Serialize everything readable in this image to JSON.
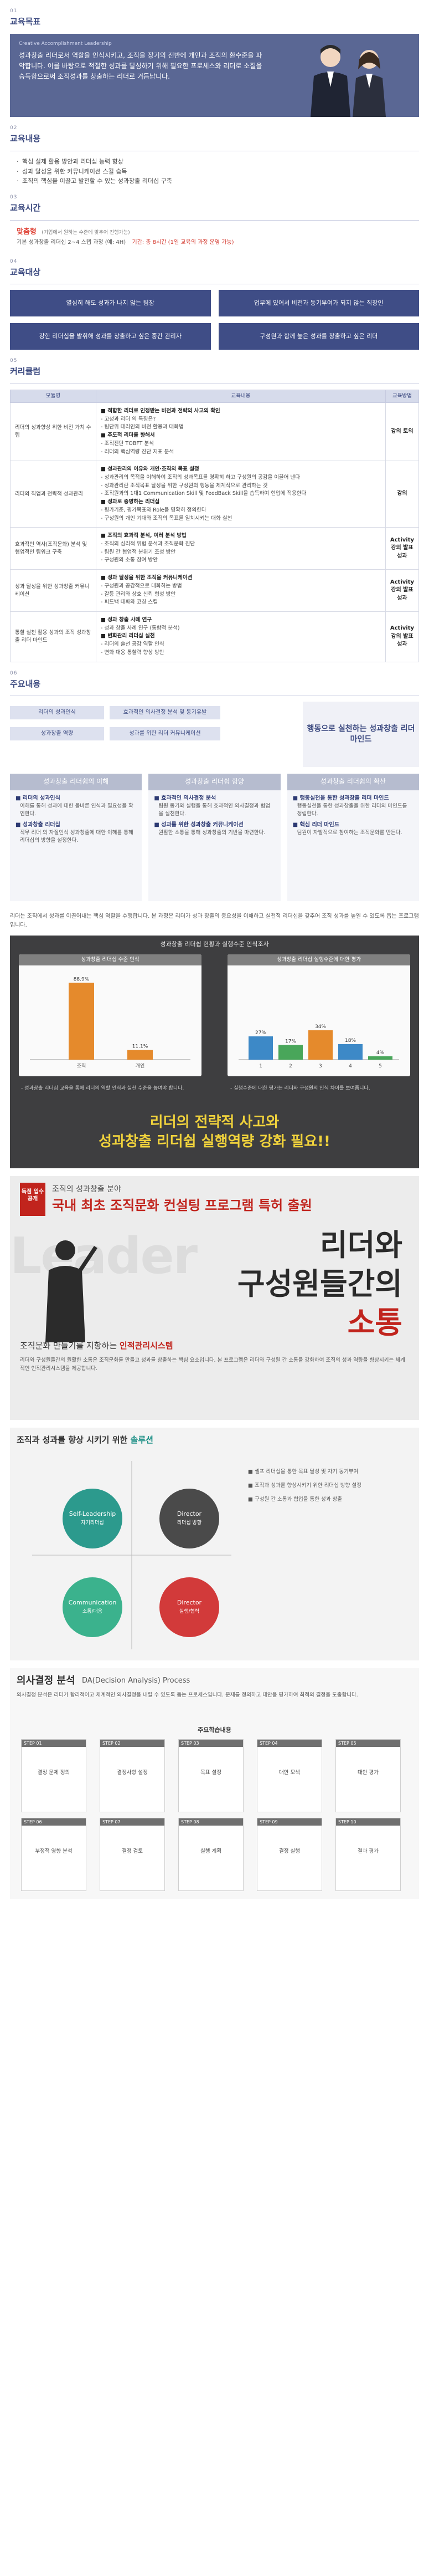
{
  "sections": {
    "goal": {
      "num": "01",
      "title": "교육목표"
    },
    "content": {
      "num": "02",
      "title": "교육내용"
    },
    "time": {
      "num": "03",
      "title": "교육시간"
    },
    "target": {
      "num": "04",
      "title": "교육대상"
    },
    "curriculum": {
      "num": "05",
      "title": "커리큘럼"
    },
    "main": {
      "num": "06",
      "title": "주요내용"
    }
  },
  "goal": {
    "banner_sub": "Creative Accomplishment Leadership",
    "text": "성과창출 리더로서 역할을 인식시키고, 조직을 장기의 전반에 개인과 조직의 환수준을 파악합니다. 이를 바탕으로 적절한 성과를 달성하기 위해 필요한 프로세스와 리더로 소질을 습득함으로써 조직성과를 창출하는 리더로 거듭납니다."
  },
  "content_items": [
    "핵심 실제 활용 방안과 리더십 능력 향상",
    "성과 달성을 위한 커뮤니케이션 스킬 습득",
    "조직의 핵심을 이끌고 발전할 수 있는 성과창출 리더십 구축"
  ],
  "time": {
    "big": "맞춤형",
    "note": "(기업에서 원하는 수준에 맞추어 진행가능)",
    "detail": "기본 성과창출 리더십 2~4 스텝 과정 (예: 4H)",
    "red": "기간: 총 8시간 (1일 교육의 과정 운영 가능)"
  },
  "target_boxes": [
    "열심히 해도 성과가 나지 않는 팀장",
    "업무에 있어서 비전과 동기부여가 되지 않는 직장인",
    "강한 리더십을 발휘해 성과를 창출하고 싶은 중간 관리자",
    "구성원과 함께 높은 성과를 창출하고 싶은 리더"
  ],
  "curriculum": {
    "headers": [
      "모듈명",
      "교육내용",
      "교육방법"
    ],
    "rows": [
      {
        "module": "리더의 성과향상 위한 비전 가치 수립",
        "lines": [
          {
            "t": "■ 적합한 리더로 인정받는 비전과 전략의 사고의 확인",
            "h": true
          },
          {
            "t": "- 고성과 리더 의 특징은?",
            "h": false
          },
          {
            "t": "- 팀단위 대리인의 비전 활용과 대화법",
            "h": false
          },
          {
            "t": "■ 주도적 리더를 향해서",
            "h": true
          },
          {
            "t": "- 조직진단 TOBFT 분석",
            "h": false
          },
          {
            "t": "- 리더의 핵심역량 진단 지표 분석",
            "h": false
          }
        ],
        "method": "강의 토의"
      },
      {
        "module": "리더의 직업과 전략적 성과관리",
        "lines": [
          {
            "t": "■ 성과관리의 이유와 개인·조직의 목표 설정",
            "h": true
          },
          {
            "t": "- 성과관리의 목적을 이해하여 조직의 성과목표를 명확히 하고 구성원의 공감을 이끌어 낸다",
            "h": false
          },
          {
            "t": "- 성과관리란 조직목표 달성을 위한 구성원의 행동을 체계적으로 관리하는 것",
            "h": false
          },
          {
            "t": "- 조직원과의 1대1 Communication Skill 및 FeedBack Skill을 습득하여 현업에 적용한다",
            "h": false
          },
          {
            "t": "■ 성과로 증명하는 리더십",
            "h": true
          },
          {
            "t": "- 평가기준, 평가목표와 Role을 명확히 정의한다",
            "h": false
          },
          {
            "t": "- 구성원의 개인 기대와 조직의 목표를 일치시키는 대화 실천",
            "h": false
          }
        ],
        "method": "강의"
      },
      {
        "module": "효과적인 역사(조직문화) 분석 및 협업적인 팀워크 구축",
        "lines": [
          {
            "t": "■ 조직의 효과적 분석, 여러 분석 방법",
            "h": true
          },
          {
            "t": "- 조직의 심리적 위험 분석과 조직문화 진단",
            "h": false
          },
          {
            "t": "- 팀원 간 협업적 분위기 조성 방안",
            "h": false
          },
          {
            "t": "- 구성원의 소통 참여 방안",
            "h": false
          }
        ],
        "method": "Activity 강의 발표 성과"
      },
      {
        "module": "성과 달성을 위한 성과창출 커뮤니케이션",
        "lines": [
          {
            "t": "■ 성과 달성을 위한 조직을 커뮤니케이션",
            "h": true
          },
          {
            "t": "- 구성원과 공감적으로 대화하는 방법",
            "h": false
          },
          {
            "t": "- 갈등 관리와 상호 신뢰 형성 방안",
            "h": false
          },
          {
            "t": "- 피드백 대화와 코칭 스킬",
            "h": false
          }
        ],
        "method": "Activity 강의 발표 성과"
      },
      {
        "module": "통찰 실천 활용 성과의 조직 성과창출 리더 마인드",
        "lines": [
          {
            "t": "■ 성과 창출 사례 연구",
            "h": true
          },
          {
            "t": "- 성과 창출 사례 연구 (통합적 분석)",
            "h": false
          },
          {
            "t": "■ 변화관리 리더십 실천",
            "h": true
          },
          {
            "t": "- 리더의 솔선 공감 역할 인식",
            "h": false
          },
          {
            "t": "- 변화 대응 통찰력 향상 방안",
            "h": false
          }
        ],
        "method": "Activity 강의 발표 성과"
      }
    ]
  },
  "main": {
    "bars": [
      "리더의 성과인식",
      "효과적인 의사결정 분석 및 동기유발",
      "성과창출 역량",
      "성과를 위한 리더 커뮤니케이션"
    ],
    "final": "행동으로 실천하는 성과창출 리더 마인드",
    "columns": [
      {
        "head": "성과창출 리더쉽의 이해",
        "items": [
          {
            "t": "■ 리더의 성과인식",
            "d": "이해를 통해 성과에 대한 올바른 인식과 필요성을 확인한다."
          },
          {
            "t": "■ 성과창출 리더십",
            "d": "직무 리더 의 자질인식 성과창출에 대한 이해를 통해 리더십의 방향을 설정한다."
          }
        ]
      },
      {
        "head": "성과창출 리더쉽 함양",
        "items": [
          {
            "t": "■ 효과적인 의사결정 분석",
            "d": "팀원 동기와 실행을 통해 효과적인 의사결정과 협업을 실천한다."
          },
          {
            "t": "■ 성과를 위한 성과창출 커뮤니케이션",
            "d": "원활한 소통을 통해 성과창출의 기반을 마련한다."
          }
        ]
      },
      {
        "head": "성과창출 리더쉽의 확산",
        "items": [
          {
            "t": "■ 행동실천을 통한 성과창출 리더 마인드",
            "d": "행동실천을 통한 성과창출을 위한 리더의 마인드를 정립한다."
          },
          {
            "t": "■ 핵심 리더 마인드",
            "d": "팀원이 자발적으로 참여하는 조직문화를 만든다."
          }
        ]
      }
    ]
  },
  "intro_para": "리더는 조직에서 성과를 이끌어내는 핵심 역할을 수행합니다. 본 과정은 리더가 성과 창출의 중요성을 이해하고 실천적 리더십을 갖추어 조직 성과를 높일 수 있도록 돕는 프로그램입니다.",
  "dark_panel": {
    "title": "성과창출 리더쉽 현황과 실행수준 인식조사",
    "chart1": {
      "title": "성과창출 리더십 수준 인식"
    },
    "chart2": {
      "title": "성과창출 리더십 실행수준에 대한 평가"
    },
    "note_left": "- 성과창출 리더십 교육을 통해 리더의 역할 인식과 실천 수준을 높여야 합니다.",
    "note_right": "- 실행수준에 대한 평가는 리더와 구성원의 인식 차이를 보여줍니다.",
    "slogan1": "리더의 전략적 사고와",
    "slogan2": "성과창출 리더쉽 실행역량 강화 필요!!"
  },
  "chart_data": [
    {
      "type": "bar",
      "title": "성과창출 리더십 수준 인식",
      "categories": [
        "조직",
        "개인"
      ],
      "values": [
        88.9,
        11.1
      ],
      "value_labels": [
        "88.9%",
        "11.1%"
      ],
      "ylim": [
        0,
        100
      ]
    },
    {
      "type": "bar",
      "title": "성과창출 리더십 실행수준에 대한 평가",
      "categories": [
        "1",
        "2",
        "3",
        "4",
        "5"
      ],
      "values": [
        27,
        17,
        34,
        18,
        4
      ],
      "value_labels": [
        "27%",
        "17%",
        "34%",
        "18%",
        "4%"
      ],
      "ylim": [
        0,
        100
      ]
    }
  ],
  "book": {
    "badge": "독점 입수 공개",
    "line1": "조직의 성과창출 분야",
    "line2": "국내 최초 조직문화 컨설팅 프로그램 특허 출원",
    "bgword": "Leader",
    "title_a": "리더와",
    "title_b": "구성원들간의",
    "title_c": "소통",
    "tagline_a": "조직문화 만들기를 지향하는 ",
    "tagline_b": "인적관리시스템",
    "para": "리더와 구성원들간의 원활한 소통은 조직문화를 만들고 성과를 창출하는 핵심 요소입니다. 본 프로그램은 리더와 구성원 간 소통을 강화하여 조직의 성과 역량을 향상시키는 체계적인 인적관리시스템을 제공합니다."
  },
  "matrix": {
    "title_a": "조직과 성과를 향상 시키기 위한 ",
    "title_b": "솔루션",
    "circles": [
      {
        "label": "Self-Leadership",
        "sub": "자기리더십",
        "color": "#2c9a8d"
      },
      {
        "label": "Director",
        "sub": "리더십 방향",
        "color": "#4a4a4a"
      },
      {
        "label": "Communication",
        "sub": "소통/대응",
        "color": "#3bb28d"
      },
      {
        "label": "Director",
        "sub": "실행/협력",
        "color": "#d23a3a"
      }
    ],
    "side": [
      "■ 셀프 리더십을 통한 목표 달성 및 자기 동기부여",
      "■ 조직과 성과를 향상시키기 위한 리더십 방향 설정",
      "■ 구성원 간 소통과 협업을 통한 성과 창출"
    ]
  },
  "da": {
    "title": "의사결정 분석",
    "sub": "DA(Decision Analysis) Process",
    "para": "의사결정 분석은 리더가 합리적이고 체계적인 의사결정을 내릴 수 있도록 돕는 프로세스입니다. 문제를 정의하고 대안을 평가하여 최적의 결정을 도출합니다.",
    "proc_title": "주요학습내용",
    "steps": [
      {
        "n": "STEP 01",
        "label": "결정 문제 정의"
      },
      {
        "n": "STEP 02",
        "label": "결정사항 설정"
      },
      {
        "n": "STEP 03",
        "label": "목표 설정"
      },
      {
        "n": "STEP 04",
        "label": "대안 모색"
      },
      {
        "n": "STEP 05",
        "label": "대안 평가"
      },
      {
        "n": "STEP 06",
        "label": "부정적 영향 분석"
      },
      {
        "n": "STEP 07",
        "label": "결정 검토"
      },
      {
        "n": "STEP 08",
        "label": "실행 계획"
      },
      {
        "n": "STEP 09",
        "label": "결정 실행"
      },
      {
        "n": "STEP 10",
        "label": "결과 평가"
      }
    ]
  }
}
